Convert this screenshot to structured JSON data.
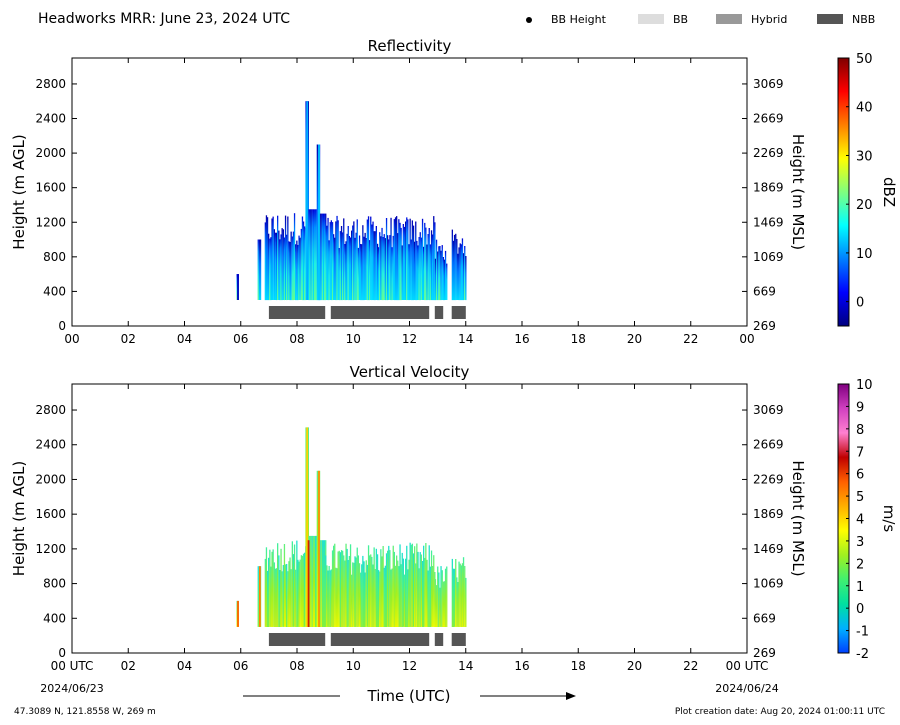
{
  "header": {
    "title": "Headworks MRR:  June 23, 2024 UTC",
    "legend": [
      {
        "label": "BB Height",
        "kind": "dot",
        "color": "#000000"
      },
      {
        "label": "BB",
        "kind": "box",
        "color": "#dddddd"
      },
      {
        "label": "Hybrid",
        "kind": "box",
        "color": "#999999"
      },
      {
        "label": "NBB",
        "kind": "box",
        "color": "#555555"
      }
    ]
  },
  "footer": {
    "x_axis_title": "Time (UTC)",
    "date_start": "2024/06/23",
    "date_end": "2024/06/24",
    "location": "47.3089 N, 121.8558 W, 269 m",
    "creation": "Plot creation date: Aug 20, 2024 01:00:11 UTC"
  },
  "colors": {
    "nbb": "#555555",
    "dbz_scale": [
      "#00007f",
      "#0000ff",
      "#007fff",
      "#00ffff",
      "#7fff7f",
      "#ffff00",
      "#ff7f00",
      "#ff0000",
      "#7f0000"
    ],
    "vel_scale": [
      "#0040ff",
      "#00b0ff",
      "#00e0a0",
      "#40f070",
      "#a0f020",
      "#ffff00",
      "#ffb000",
      "#ff6000",
      "#c00000",
      "#ff80d0",
      "#d040c0",
      "#800080"
    ]
  },
  "chart_data": [
    {
      "type": "heatmap",
      "title": "Reflectivity",
      "xlabel": "",
      "ylabel": "Height (m AGL)",
      "y2label": "Height (m MSL)",
      "xlim": [
        0,
        24
      ],
      "ylim": [
        0,
        3100
      ],
      "xticks": [
        "00",
        "02",
        "04",
        "06",
        "08",
        "10",
        "12",
        "14",
        "16",
        "18",
        "20",
        "22",
        "00"
      ],
      "yticks": [
        0,
        400,
        800,
        1200,
        1600,
        2000,
        2400,
        2800
      ],
      "yticks_right": [
        269,
        669,
        1069,
        1469,
        1869,
        2269,
        2669,
        3069
      ],
      "colorbar": {
        "label": "dBZ",
        "min": -5,
        "max": 50,
        "ticks": [
          0,
          10,
          20,
          30,
          40,
          50
        ]
      },
      "echo_top_m": [
        {
          "start": 5.85,
          "end": 5.9,
          "top": 600
        },
        {
          "start": 6.6,
          "end": 6.7,
          "top": 1000
        },
        {
          "start": 6.85,
          "end": 8.3,
          "top": 1300
        },
        {
          "start": 8.3,
          "end": 8.4,
          "top": 2600
        },
        {
          "start": 8.4,
          "end": 8.7,
          "top": 1350
        },
        {
          "start": 8.7,
          "end": 8.8,
          "top": 2100
        },
        {
          "start": 8.8,
          "end": 9.0,
          "top": 1300
        },
        {
          "start": 9.0,
          "end": 12.9,
          "top": 1250
        },
        {
          "start": 12.9,
          "end": 13.3,
          "top": 1000
        },
        {
          "start": 13.5,
          "end": 14.0,
          "top": 1100
        }
      ],
      "echo_base_m": 300,
      "nbb_periods": [
        [
          7.0,
          9.0
        ],
        [
          9.2,
          12.7
        ],
        [
          12.9,
          13.2
        ],
        [
          13.5,
          14.0
        ]
      ]
    },
    {
      "type": "heatmap",
      "title": "Vertical Velocity",
      "xlabel": "Time (UTC)",
      "ylabel": "Height (m AGL)",
      "y2label": "Height (m MSL)",
      "xlim": [
        0,
        24
      ],
      "ylim": [
        0,
        3100
      ],
      "xticks": [
        "00 UTC",
        "02",
        "04",
        "06",
        "08",
        "10",
        "12",
        "14",
        "16",
        "18",
        "20",
        "22",
        "00 UTC"
      ],
      "yticks": [
        0,
        400,
        800,
        1200,
        1600,
        2000,
        2400,
        2800
      ],
      "yticks_right": [
        269,
        669,
        1069,
        1469,
        1869,
        2269,
        2669,
        3069
      ],
      "colorbar": {
        "label": "m/s",
        "min": -2,
        "max": 10,
        "ticks": [
          -2,
          -1,
          0,
          1,
          2,
          3,
          4,
          5,
          6,
          7,
          8,
          9,
          10
        ]
      },
      "echo_top_m": [
        {
          "start": 5.85,
          "end": 5.9,
          "top": 600
        },
        {
          "start": 6.6,
          "end": 6.7,
          "top": 1000
        },
        {
          "start": 6.85,
          "end": 8.3,
          "top": 1300
        },
        {
          "start": 8.3,
          "end": 8.4,
          "top": 2600
        },
        {
          "start": 8.4,
          "end": 8.7,
          "top": 1350
        },
        {
          "start": 8.7,
          "end": 8.8,
          "top": 2100
        },
        {
          "start": 8.8,
          "end": 9.0,
          "top": 1300
        },
        {
          "start": 9.0,
          "end": 12.9,
          "top": 1250
        },
        {
          "start": 12.9,
          "end": 13.3,
          "top": 1000
        },
        {
          "start": 13.5,
          "end": 14.0,
          "top": 1100
        }
      ],
      "echo_base_m": 300,
      "nbb_periods": [
        [
          7.0,
          9.0
        ],
        [
          9.2,
          12.7
        ],
        [
          12.9,
          13.2
        ],
        [
          13.5,
          14.0
        ]
      ]
    }
  ]
}
